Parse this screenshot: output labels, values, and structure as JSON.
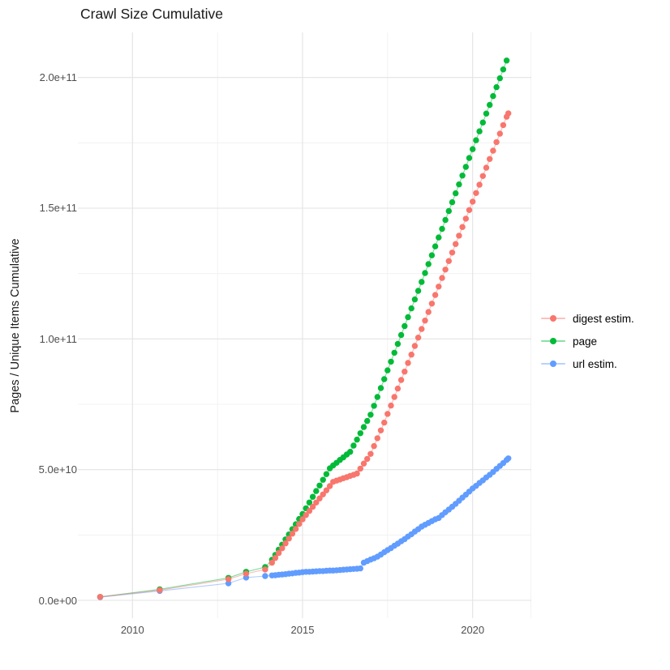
{
  "title": "Crawl Size Cumulative",
  "y_axis": {
    "label": "Pages / Unique Items Cumulative",
    "tick_labels": [
      "0.0e+00",
      "5.0e+10",
      "1.0e+11",
      "1.5e+11",
      "2.0e+11"
    ],
    "tick_values_e9": [
      0,
      50,
      100,
      150,
      200
    ],
    "minor_values_e9": [
      25,
      75,
      125,
      175
    ]
  },
  "x_axis": {
    "tick_labels": [
      "2010",
      "2015",
      "2020"
    ],
    "tick_years": [
      2010,
      2015,
      2020
    ],
    "minor_years": [
      2012.5,
      2017.5
    ]
  },
  "legend": {
    "items": [
      {
        "label": "digest estim.",
        "color": "#F8766D"
      },
      {
        "label": "page",
        "color": "#00BA38"
      },
      {
        "label": "url estim.",
        "color": "#619CFF"
      }
    ]
  },
  "chart_data": {
    "type": "line",
    "title": "Crawl Size Cumulative",
    "xlabel": "",
    "ylabel": "Pages / Unique Items Cumulative",
    "x_unit": "decimal year",
    "y_unit": "pages / unique items, value × 1e9",
    "xlim": [
      2008.4,
      2021.7
    ],
    "ylim_e9": [
      0,
      217
    ],
    "grid": true,
    "legend_position": "right",
    "marker": "point-with-line",
    "series": [
      {
        "name": "digest estim.",
        "color": "#F8766D",
        "points": [
          [
            2009.05,
            1.3
          ],
          [
            2010.8,
            3.9
          ],
          [
            2012.82,
            8.1
          ],
          [
            2013.34,
            10.2
          ],
          [
            2013.9,
            11.8
          ],
          [
            2014.1,
            14.4
          ],
          [
            2014.2,
            16.2
          ],
          [
            2014.3,
            18.1
          ],
          [
            2014.4,
            19.9
          ],
          [
            2014.5,
            21.8
          ],
          [
            2014.6,
            23.6
          ],
          [
            2014.7,
            25.5
          ],
          [
            2014.8,
            27.3
          ],
          [
            2014.9,
            29.2
          ],
          [
            2015.0,
            31.0
          ],
          [
            2015.1,
            32.6
          ],
          [
            2015.2,
            34.2
          ],
          [
            2015.3,
            35.8
          ],
          [
            2015.4,
            37.4
          ],
          [
            2015.5,
            39.0
          ],
          [
            2015.6,
            40.5
          ],
          [
            2015.7,
            42.1
          ],
          [
            2015.8,
            43.7
          ],
          [
            2015.9,
            45.3
          ],
          [
            2016.0,
            45.8
          ],
          [
            2016.1,
            46.2
          ],
          [
            2016.2,
            46.7
          ],
          [
            2016.3,
            47.1
          ],
          [
            2016.4,
            47.6
          ],
          [
            2016.5,
            48.0
          ],
          [
            2016.6,
            48.5
          ],
          [
            2016.7,
            50.4
          ],
          [
            2016.8,
            52.3
          ],
          [
            2016.9,
            54.1
          ],
          [
            2017.0,
            56.0
          ],
          [
            2017.1,
            59.0
          ],
          [
            2017.2,
            62.0
          ],
          [
            2017.3,
            65.0
          ],
          [
            2017.4,
            68.0
          ],
          [
            2017.5,
            71.3
          ],
          [
            2017.6,
            74.5
          ],
          [
            2017.7,
            77.8
          ],
          [
            2017.8,
            81.0
          ],
          [
            2017.9,
            84.3
          ],
          [
            2018.0,
            87.5
          ],
          [
            2018.1,
            90.8
          ],
          [
            2018.2,
            94.0
          ],
          [
            2018.3,
            97.3
          ],
          [
            2018.4,
            100.5
          ],
          [
            2018.5,
            103.8
          ],
          [
            2018.6,
            107.0
          ],
          [
            2018.7,
            110.3
          ],
          [
            2018.8,
            113.5
          ],
          [
            2018.9,
            116.8
          ],
          [
            2019.0,
            120.0
          ],
          [
            2019.1,
            123.3
          ],
          [
            2019.2,
            126.5
          ],
          [
            2019.3,
            129.8
          ],
          [
            2019.4,
            133.0
          ],
          [
            2019.5,
            136.3
          ],
          [
            2019.6,
            139.5
          ],
          [
            2019.7,
            142.8
          ],
          [
            2019.8,
            146.0
          ],
          [
            2019.9,
            149.3
          ],
          [
            2020.0,
            152.5
          ],
          [
            2020.1,
            155.8
          ],
          [
            2020.2,
            159.0
          ],
          [
            2020.3,
            162.3
          ],
          [
            2020.4,
            165.5
          ],
          [
            2020.5,
            168.8
          ],
          [
            2020.6,
            172.0
          ],
          [
            2020.7,
            175.3
          ],
          [
            2020.8,
            178.5
          ],
          [
            2020.9,
            181.8
          ],
          [
            2021.0,
            185.0
          ],
          [
            2021.05,
            186.3
          ]
        ]
      },
      {
        "name": "page",
        "color": "#00BA38",
        "points": [
          [
            2009.05,
            1.3
          ],
          [
            2010.8,
            4.2
          ],
          [
            2012.82,
            8.6
          ],
          [
            2013.34,
            10.9
          ],
          [
            2013.9,
            12.7
          ],
          [
            2014.1,
            15.5
          ],
          [
            2014.2,
            17.4
          ],
          [
            2014.3,
            19.4
          ],
          [
            2014.4,
            21.3
          ],
          [
            2014.5,
            23.3
          ],
          [
            2014.6,
            25.2
          ],
          [
            2014.7,
            27.2
          ],
          [
            2014.8,
            29.1
          ],
          [
            2014.9,
            31.1
          ],
          [
            2015.0,
            33.0
          ],
          [
            2015.1,
            35.2
          ],
          [
            2015.2,
            37.4
          ],
          [
            2015.3,
            39.6
          ],
          [
            2015.4,
            41.8
          ],
          [
            2015.5,
            43.9
          ],
          [
            2015.6,
            46.1
          ],
          [
            2015.7,
            48.3
          ],
          [
            2015.8,
            50.5
          ],
          [
            2015.9,
            51.6
          ],
          [
            2016.0,
            52.6
          ],
          [
            2016.1,
            53.7
          ],
          [
            2016.2,
            54.7
          ],
          [
            2016.3,
            55.8
          ],
          [
            2016.4,
            56.8
          ],
          [
            2016.5,
            59.2
          ],
          [
            2016.6,
            61.5
          ],
          [
            2016.7,
            63.9
          ],
          [
            2016.8,
            66.3
          ],
          [
            2016.9,
            68.6
          ],
          [
            2017.0,
            71.0
          ],
          [
            2017.1,
            74.4
          ],
          [
            2017.2,
            77.8
          ],
          [
            2017.3,
            81.2
          ],
          [
            2017.4,
            84.6
          ],
          [
            2017.5,
            88.0
          ],
          [
            2017.6,
            91.3
          ],
          [
            2017.7,
            94.7
          ],
          [
            2017.8,
            98.1
          ],
          [
            2017.9,
            101.5
          ],
          [
            2018.0,
            104.9
          ],
          [
            2018.1,
            108.3
          ],
          [
            2018.2,
            111.7
          ],
          [
            2018.3,
            115.1
          ],
          [
            2018.4,
            118.4
          ],
          [
            2018.5,
            121.8
          ],
          [
            2018.6,
            125.2
          ],
          [
            2018.7,
            128.6
          ],
          [
            2018.8,
            132.0
          ],
          [
            2018.9,
            135.4
          ],
          [
            2019.0,
            138.8
          ],
          [
            2019.1,
            142.1
          ],
          [
            2019.2,
            145.5
          ],
          [
            2019.3,
            148.9
          ],
          [
            2019.4,
            152.3
          ],
          [
            2019.5,
            155.7
          ],
          [
            2019.6,
            159.1
          ],
          [
            2019.7,
            162.5
          ],
          [
            2019.8,
            165.8
          ],
          [
            2019.9,
            169.2
          ],
          [
            2020.0,
            172.6
          ],
          [
            2020.1,
            176.0
          ],
          [
            2020.2,
            179.4
          ],
          [
            2020.3,
            182.8
          ],
          [
            2020.4,
            186.2
          ],
          [
            2020.5,
            189.5
          ],
          [
            2020.6,
            192.9
          ],
          [
            2020.7,
            196.3
          ],
          [
            2020.8,
            199.7
          ],
          [
            2020.9,
            203.1
          ],
          [
            2021.0,
            206.5
          ]
        ]
      },
      {
        "name": "url estim.",
        "color": "#619CFF",
        "points": [
          [
            2009.05,
            1.2
          ],
          [
            2010.8,
            3.6
          ],
          [
            2012.82,
            6.5
          ],
          [
            2013.34,
            8.7
          ],
          [
            2013.9,
            9.3
          ],
          [
            2014.1,
            9.5
          ],
          [
            2014.2,
            9.6
          ],
          [
            2014.3,
            9.8
          ],
          [
            2014.4,
            9.9
          ],
          [
            2014.5,
            10.0
          ],
          [
            2014.6,
            10.2
          ],
          [
            2014.7,
            10.3
          ],
          [
            2014.8,
            10.5
          ],
          [
            2014.9,
            10.6
          ],
          [
            2015.0,
            10.8
          ],
          [
            2015.1,
            10.9
          ],
          [
            2015.2,
            10.9
          ],
          [
            2015.3,
            11.0
          ],
          [
            2015.4,
            11.1
          ],
          [
            2015.5,
            11.2
          ],
          [
            2015.6,
            11.2
          ],
          [
            2015.7,
            11.3
          ],
          [
            2015.8,
            11.4
          ],
          [
            2015.9,
            11.4
          ],
          [
            2016.0,
            11.5
          ],
          [
            2016.1,
            11.6
          ],
          [
            2016.2,
            11.7
          ],
          [
            2016.3,
            11.8
          ],
          [
            2016.4,
            11.9
          ],
          [
            2016.5,
            12.0
          ],
          [
            2016.6,
            12.1
          ],
          [
            2016.7,
            12.2
          ],
          [
            2016.8,
            14.4
          ],
          [
            2016.9,
            15.0
          ],
          [
            2017.0,
            15.6
          ],
          [
            2017.1,
            16.1
          ],
          [
            2017.2,
            16.7
          ],
          [
            2017.3,
            17.5
          ],
          [
            2017.4,
            18.4
          ],
          [
            2017.5,
            19.2
          ],
          [
            2017.6,
            20.0
          ],
          [
            2017.7,
            20.9
          ],
          [
            2017.8,
            21.7
          ],
          [
            2017.9,
            22.6
          ],
          [
            2018.0,
            23.4
          ],
          [
            2018.1,
            24.4
          ],
          [
            2018.2,
            25.3
          ],
          [
            2018.3,
            26.3
          ],
          [
            2018.4,
            27.2
          ],
          [
            2018.5,
            28.2
          ],
          [
            2018.6,
            28.9
          ],
          [
            2018.7,
            29.6
          ],
          [
            2018.8,
            30.3
          ],
          [
            2018.9,
            31.0
          ],
          [
            2019.0,
            31.5
          ],
          [
            2019.1,
            32.6
          ],
          [
            2019.2,
            33.7
          ],
          [
            2019.3,
            34.7
          ],
          [
            2019.4,
            35.8
          ],
          [
            2019.5,
            36.9
          ],
          [
            2019.6,
            38.1
          ],
          [
            2019.7,
            39.3
          ],
          [
            2019.8,
            40.4
          ],
          [
            2019.9,
            41.6
          ],
          [
            2020.0,
            42.8
          ],
          [
            2020.1,
            43.8
          ],
          [
            2020.2,
            44.9
          ],
          [
            2020.3,
            45.9
          ],
          [
            2020.4,
            47.0
          ],
          [
            2020.5,
            48.0
          ],
          [
            2020.6,
            49.1
          ],
          [
            2020.7,
            50.3
          ],
          [
            2020.8,
            51.4
          ],
          [
            2020.9,
            52.5
          ],
          [
            2021.0,
            53.7
          ],
          [
            2021.05,
            54.3
          ]
        ]
      }
    ]
  }
}
